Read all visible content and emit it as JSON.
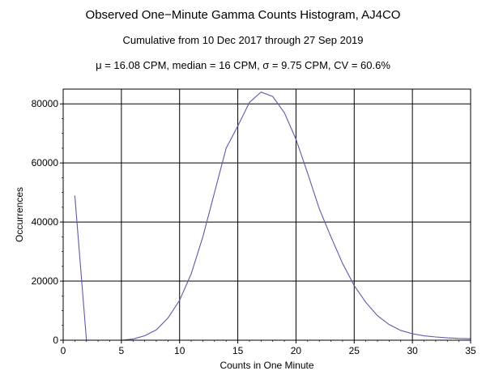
{
  "chart_data": {
    "type": "line",
    "title": "Observed One−Minute Gamma Counts Histogram, AJ4CO",
    "subtitle": "Cumulative from 10 Dec 2017 through 27 Sep 2019",
    "stats_line": "μ = 16.08 CPM,   median = 16 CPM,   σ = 9.75 CPM,   CV = 60.6%",
    "xlabel": "Counts in One Minute",
    "ylabel": "Occurrences",
    "xlim": [
      0,
      35
    ],
    "ylim": [
      0,
      85000
    ],
    "x_ticks": [
      0,
      5,
      10,
      15,
      20,
      25,
      30,
      35
    ],
    "y_ticks": [
      0,
      20000,
      40000,
      60000,
      80000
    ],
    "grid": true,
    "line_color": "#5b5ba8",
    "series": [
      {
        "segment": "low",
        "x": [
          1,
          2
        ],
        "y": [
          49000,
          0
        ]
      },
      {
        "segment": "main",
        "x": [
          5,
          6,
          7,
          8,
          9,
          10,
          11,
          12,
          13,
          14,
          15,
          16,
          17,
          18,
          19,
          20,
          21,
          22,
          23,
          24,
          25,
          26,
          27,
          28,
          29,
          30,
          31,
          32,
          33,
          34,
          35
        ],
        "y": [
          0,
          400,
          1500,
          3500,
          7500,
          13500,
          22500,
          35000,
          50000,
          65000,
          72500,
          80500,
          84000,
          82500,
          77000,
          68000,
          56500,
          44500,
          35000,
          26000,
          18500,
          12800,
          8300,
          5300,
          3300,
          2200,
          1500,
          1100,
          800,
          600,
          500
        ]
      }
    ]
  }
}
